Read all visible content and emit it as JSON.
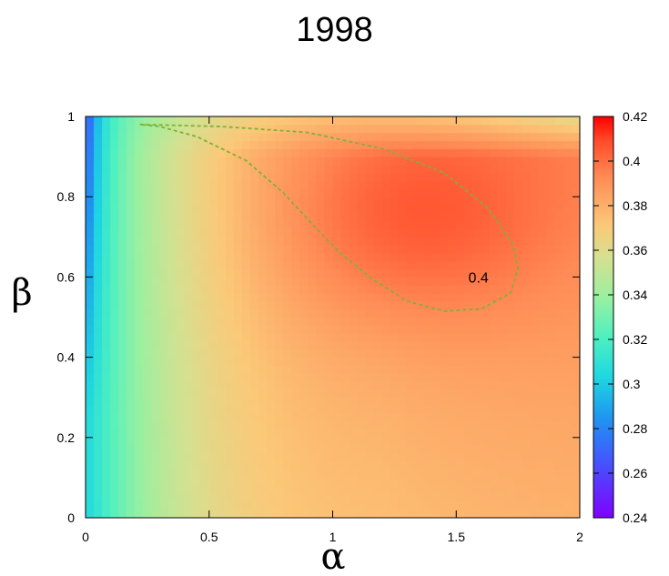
{
  "chart_data": {
    "type": "heatmap",
    "title": "1998",
    "xlabel": "α",
    "ylabel": "β",
    "xlim": [
      0,
      2
    ],
    "ylim": [
      0,
      1
    ],
    "x_ticks": [
      "0",
      "0.5",
      "1",
      "1.5",
      "2"
    ],
    "x_tick_values": [
      0,
      0.5,
      1,
      1.5,
      2
    ],
    "y_ticks": [
      "0",
      "0.2",
      "0.4",
      "0.6",
      "0.8",
      "1"
    ],
    "y_tick_values": [
      0,
      0.2,
      0.4,
      0.6,
      0.8,
      1
    ],
    "colorbar": {
      "range": [
        0.24,
        0.42
      ],
      "ticks": [
        "0.24",
        "0.26",
        "0.28",
        "0.3",
        "0.32",
        "0.34",
        "0.36",
        "0.38",
        "0.4",
        "0.42"
      ],
      "tick_values": [
        0.24,
        0.26,
        0.28,
        0.3,
        0.32,
        0.34,
        0.36,
        0.38,
        0.4,
        0.42
      ],
      "colormap": "rainbow"
    },
    "contour": {
      "level": 0.4,
      "label": "0.4",
      "color": "#7fb03a",
      "points": [
        [
          0.22,
          0.98
        ],
        [
          0.55,
          0.975
        ],
        [
          0.9,
          0.96
        ],
        [
          1.2,
          0.92
        ],
        [
          1.45,
          0.86
        ],
        [
          1.63,
          0.77
        ],
        [
          1.73,
          0.68
        ],
        [
          1.75,
          0.62
        ],
        [
          1.72,
          0.56
        ],
        [
          1.6,
          0.52
        ],
        [
          1.45,
          0.515
        ],
        [
          1.3,
          0.54
        ],
        [
          1.15,
          0.6
        ],
        [
          1.03,
          0.66
        ],
        [
          0.92,
          0.73
        ],
        [
          0.8,
          0.81
        ],
        [
          0.65,
          0.89
        ],
        [
          0.45,
          0.95
        ],
        [
          0.3,
          0.975
        ],
        [
          0.22,
          0.98
        ]
      ]
    },
    "label_position": {
      "x": 1.59,
      "y": 0.6
    }
  }
}
